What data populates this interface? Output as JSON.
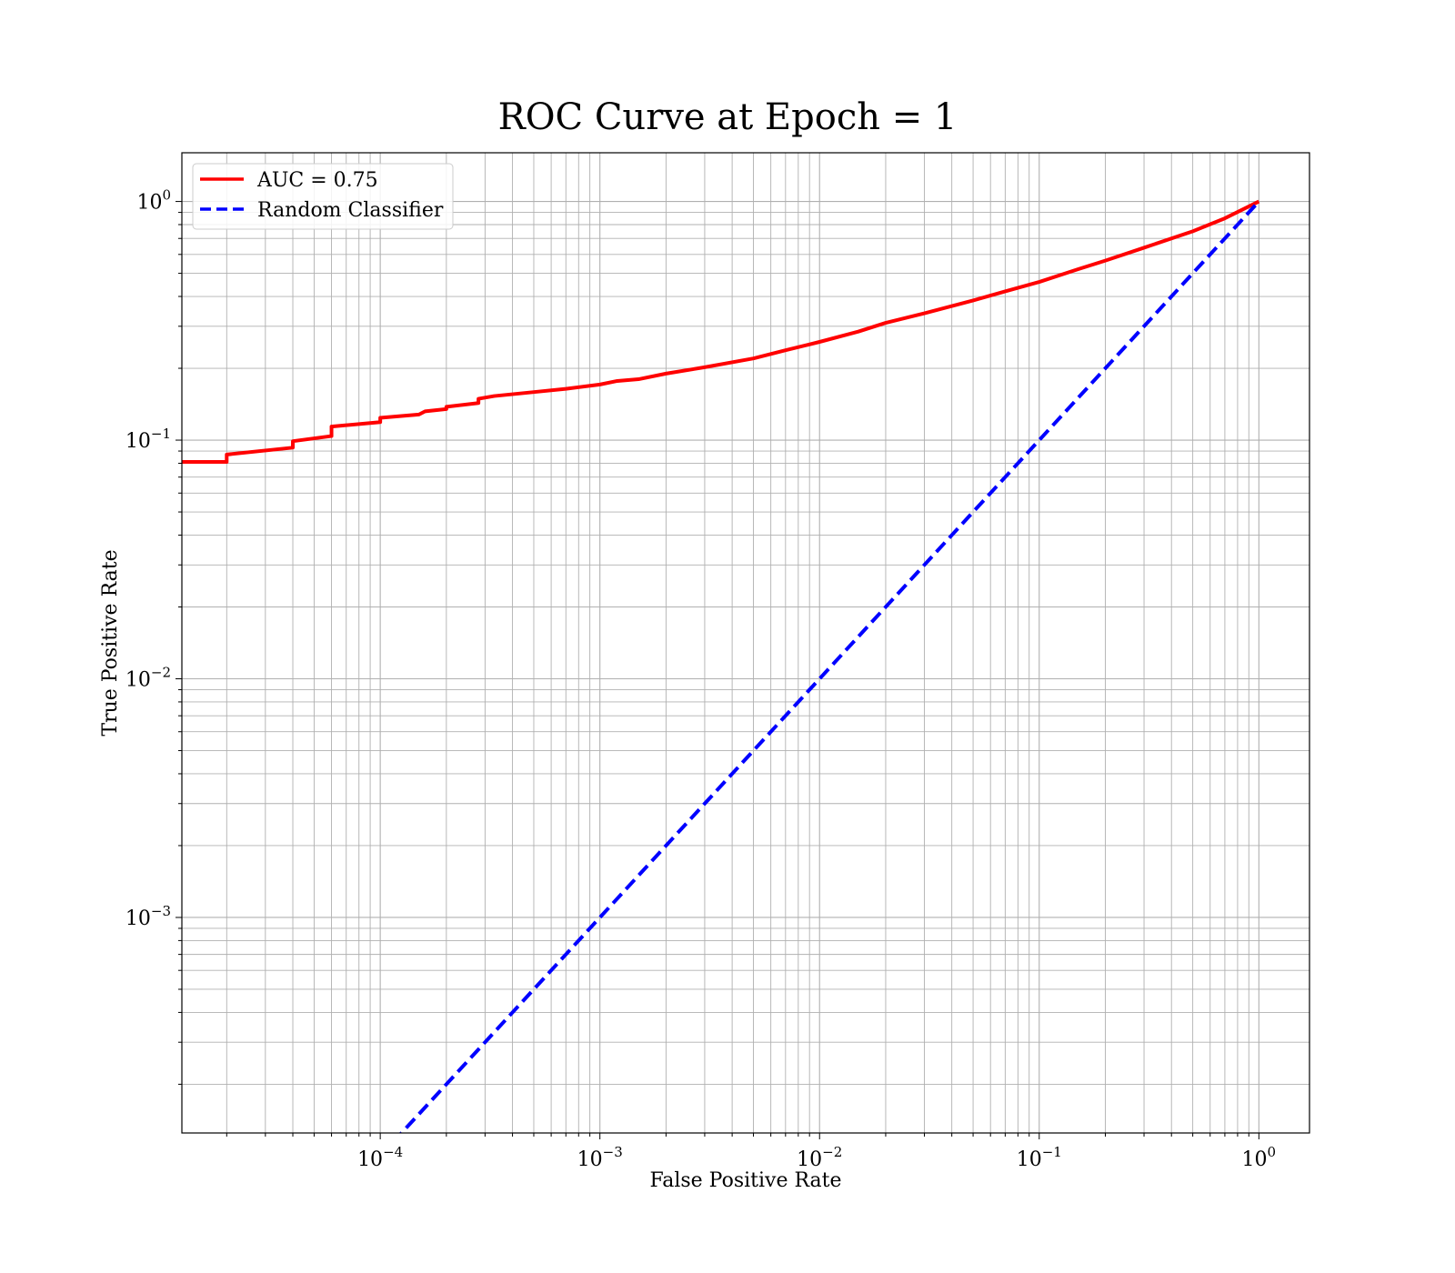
{
  "chart_data": {
    "type": "line",
    "title": "ROC Curve at Epoch = 1",
    "xlabel": "False Positive Rate",
    "ylabel": "True Positive Rate",
    "xscale": "log",
    "yscale": "log",
    "xlim": [
      1.25e-05,
      1.7
    ],
    "ylim": [
      0.000125,
      1.6
    ],
    "grid": "both (major and minor)",
    "legend_position": "upper left",
    "x_ticks": [
      {
        "base": "10",
        "exp": "−4",
        "value": 0.0001
      },
      {
        "base": "10",
        "exp": "−3",
        "value": 0.001
      },
      {
        "base": "10",
        "exp": "−2",
        "value": 0.01
      },
      {
        "base": "10",
        "exp": "−1",
        "value": 0.1
      },
      {
        "base": "10",
        "exp": "0",
        "value": 1
      }
    ],
    "y_ticks": [
      {
        "base": "10",
        "exp": "−3",
        "value": 0.001
      },
      {
        "base": "10",
        "exp": "−2",
        "value": 0.01
      },
      {
        "base": "10",
        "exp": "−1",
        "value": 0.1
      },
      {
        "base": "10",
        "exp": "0",
        "value": 1
      }
    ],
    "series": [
      {
        "name": "AUC = 0.75",
        "color": "#ff0000",
        "style": "solid",
        "points": [
          [
            1.25e-05,
            0.081
          ],
          [
            2e-05,
            0.081
          ],
          [
            2e-05,
            0.087
          ],
          [
            4e-05,
            0.093
          ],
          [
            4e-05,
            0.099
          ],
          [
            6e-05,
            0.104
          ],
          [
            6e-05,
            0.114
          ],
          [
            0.0001,
            0.119
          ],
          [
            0.0001,
            0.124
          ],
          [
            0.00015,
            0.128
          ],
          [
            0.00016,
            0.132
          ],
          [
            0.0002,
            0.135
          ],
          [
            0.0002,
            0.138
          ],
          [
            0.00028,
            0.143
          ],
          [
            0.00028,
            0.149
          ],
          [
            0.00033,
            0.153
          ],
          [
            0.0005,
            0.159
          ],
          [
            0.0007,
            0.164
          ],
          [
            0.001,
            0.171
          ],
          [
            0.0012,
            0.177
          ],
          [
            0.0015,
            0.18
          ],
          [
            0.002,
            0.19
          ],
          [
            0.003,
            0.202
          ],
          [
            0.005,
            0.22
          ],
          [
            0.007,
            0.238
          ],
          [
            0.01,
            0.258
          ],
          [
            0.015,
            0.285
          ],
          [
            0.02,
            0.31
          ],
          [
            0.03,
            0.34
          ],
          [
            0.05,
            0.385
          ],
          [
            0.07,
            0.42
          ],
          [
            0.1,
            0.46
          ],
          [
            0.15,
            0.52
          ],
          [
            0.2,
            0.565
          ],
          [
            0.3,
            0.64
          ],
          [
            0.5,
            0.75
          ],
          [
            0.7,
            0.85
          ],
          [
            1.0,
            1.0
          ]
        ]
      },
      {
        "name": "Random Classifier",
        "color": "#0000ff",
        "style": "dashed",
        "points": [
          [
            0.0001,
            0.0001
          ],
          [
            1.0,
            1.0
          ]
        ]
      }
    ]
  }
}
